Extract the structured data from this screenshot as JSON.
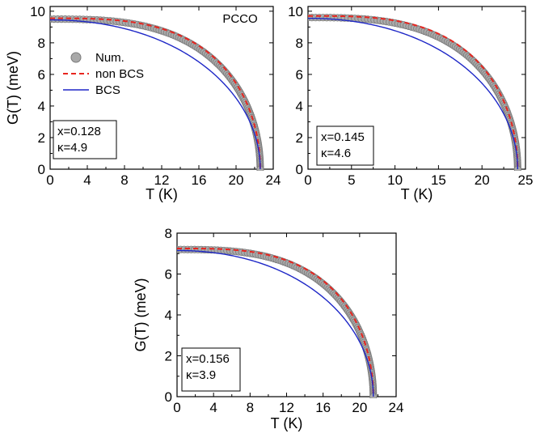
{
  "chart_data": [
    {
      "type": "line",
      "xlabel": "T (K)",
      "ylabel": "G(T) (meV)",
      "xlim": [
        0,
        24
      ],
      "ylim": [
        0,
        10.3
      ],
      "xticks": [
        "0",
        "4",
        "8",
        "12",
        "16",
        "20",
        "24"
      ],
      "yticks": [
        "0",
        "2",
        "4",
        "6",
        "8",
        "10"
      ],
      "label": "PCCO",
      "annotation": [
        "x=0.128",
        "κ=4.9"
      ],
      "legend": [
        "Num.",
        "non BCS",
        "BCS"
      ],
      "legend_position": "left",
      "Tc": 22.6,
      "series": [
        {
          "name": "Num.",
          "kind": "markers",
          "G0": 9.5,
          "colors": {
            "fill": "#a9a9a9",
            "edge": "#7a7a7a"
          }
        },
        {
          "name": "non BCS",
          "kind": "dashed",
          "G0": 9.55,
          "color": "#e8251f"
        },
        {
          "name": "BCS",
          "kind": "solid",
          "G0": 9.45,
          "color": "#1e27c7"
        }
      ]
    },
    {
      "type": "line",
      "xlabel": "T (K)",
      "ylabel": "",
      "xlim": [
        0,
        25
      ],
      "ylim": [
        0,
        10.3
      ],
      "xticks": [
        "0",
        "5",
        "10",
        "15",
        "20",
        "25"
      ],
      "yticks": [
        "0",
        "2",
        "4",
        "6",
        "8",
        "10"
      ],
      "annotation": [
        "x=0.145",
        "κ=4.6"
      ],
      "Tc": 24.1,
      "series": [
        {
          "name": "Num.",
          "kind": "markers",
          "G0": 9.6,
          "colors": {
            "fill": "#a9a9a9",
            "edge": "#7a7a7a"
          }
        },
        {
          "name": "non BCS",
          "kind": "dashed",
          "G0": 9.7,
          "color": "#e8251f"
        },
        {
          "name": "BCS",
          "kind": "solid",
          "G0": 9.55,
          "color": "#1e27c7"
        }
      ]
    },
    {
      "type": "line",
      "xlabel": "T (K)",
      "ylabel": "G(T) (meV)",
      "xlim": [
        0,
        24
      ],
      "ylim": [
        0,
        8
      ],
      "xticks": [
        "0",
        "4",
        "8",
        "12",
        "16",
        "20",
        "24"
      ],
      "yticks": [
        "0",
        "2",
        "4",
        "6",
        "8"
      ],
      "annotation": [
        "x=0.156",
        "κ=3.9"
      ],
      "Tc": 21.5,
      "series": [
        {
          "name": "Num.",
          "kind": "markers",
          "G0": 7.2,
          "colors": {
            "fill": "#a9a9a9",
            "edge": "#7a7a7a"
          }
        },
        {
          "name": "non BCS",
          "kind": "dashed",
          "G0": 7.25,
          "color": "#e8251f"
        },
        {
          "name": "BCS",
          "kind": "solid",
          "G0": 7.15,
          "color": "#1e27c7"
        }
      ]
    }
  ]
}
